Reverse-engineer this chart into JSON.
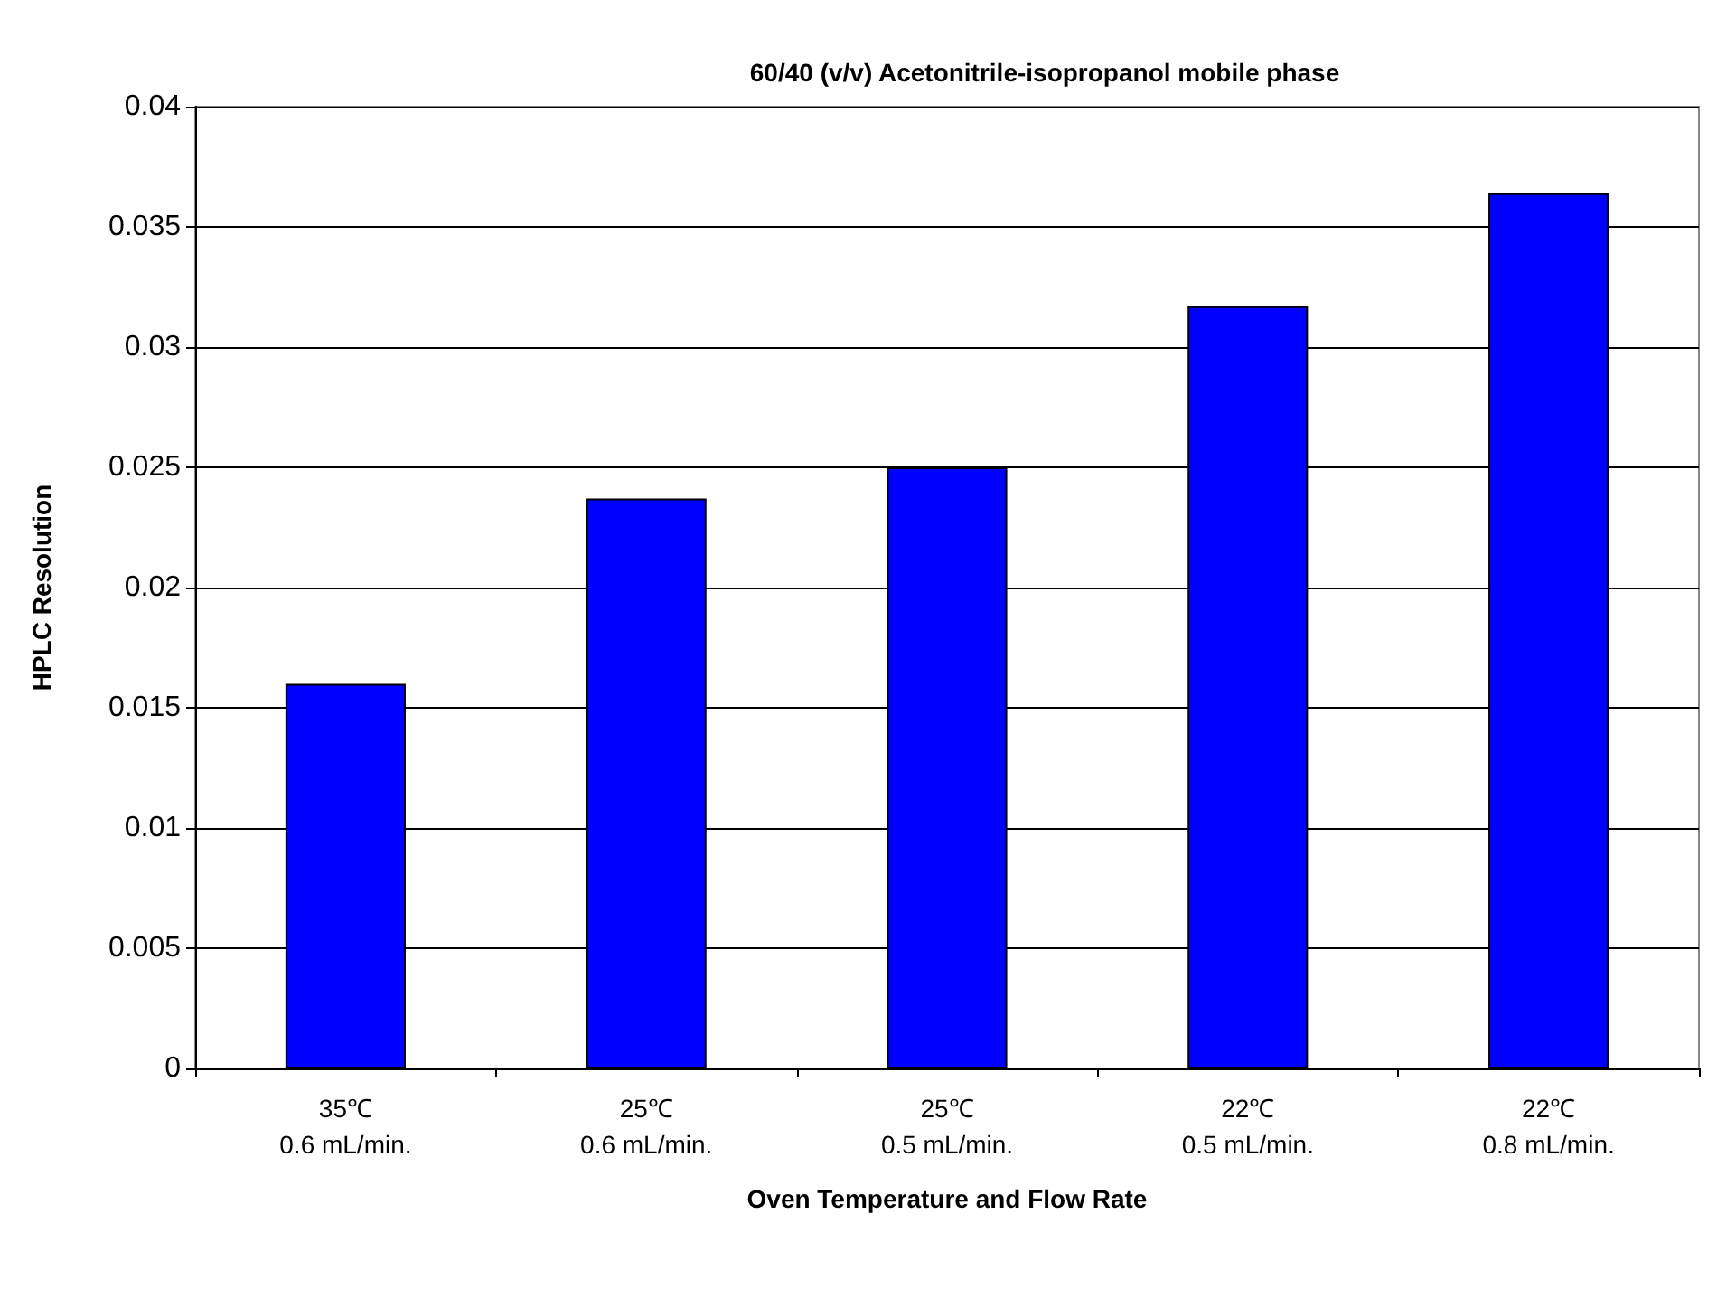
{
  "chart_data": {
    "type": "bar",
    "title": "60/40 (v/v) Acetonitrile-isopropanol mobile phase",
    "xlabel": "Oven Temperature and Flow Rate",
    "ylabel": "HPLC Resolution",
    "categories": [
      "35℃\n0.6 mL/min.",
      "25℃\n0.6 mL/min.",
      "25℃\n0.5 mL/min.",
      "22℃\n0.5 mL/min.",
      "22℃\n0.8 mL/min."
    ],
    "values": [
      0.016,
      0.0237,
      0.025,
      0.0317,
      0.0364
    ],
    "color": "#0000ff",
    "ylim": [
      0,
      0.04
    ],
    "yticks": [
      0,
      0.005,
      0.01,
      0.015,
      0.02,
      0.025,
      0.03,
      0.035,
      0.04
    ],
    "grid": "y"
  }
}
